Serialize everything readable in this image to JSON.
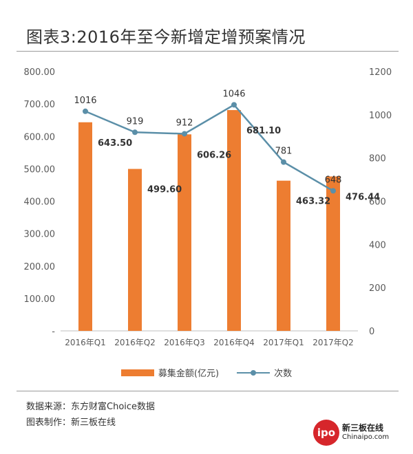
{
  "title": "图表3:2016年至今新增定增预案情况",
  "legend": {
    "bar_label": "募集金额(亿元)",
    "line_label": "次数"
  },
  "notes": {
    "source": "数据来源：东方财富Choice数据",
    "maker": "图表制作：新三板在线"
  },
  "logo": {
    "mark": "ipo",
    "name_cn": "新三板在线",
    "name_en": "Chinaipo.com"
  },
  "colors": {
    "bar": "#ed7d31",
    "line": "#5b8fa8",
    "axis_text": "#595959",
    "label_text": "#333333"
  },
  "chart_data": {
    "type": "bar",
    "categories": [
      "2016年Q1",
      "2016年Q2",
      "2016年Q3",
      "2016年Q4",
      "2017年Q1",
      "2017年Q2"
    ],
    "series": [
      {
        "name": "募集金额(亿元)",
        "type": "bar",
        "axis": "left",
        "values": [
          643.5,
          499.6,
          606.26,
          681.1,
          463.32,
          476.44
        ],
        "labels": [
          "643.50",
          "499.60",
          "606.26",
          "681.10",
          "463.32",
          "476.44"
        ]
      },
      {
        "name": "次数",
        "type": "line",
        "axis": "right",
        "values": [
          1016,
          919,
          912,
          1046,
          781,
          648
        ],
        "labels": [
          "1016",
          "919",
          "912",
          "1046",
          "781",
          "648"
        ]
      }
    ],
    "y_left": {
      "min": 0,
      "max": 800,
      "ticks": [
        0,
        100,
        200,
        300,
        400,
        500,
        600,
        700,
        800
      ],
      "tick_labels": [
        "-",
        "100.00",
        "200.00",
        "300.00",
        "400.00",
        "500.00",
        "600.00",
        "700.00",
        "800.00"
      ]
    },
    "y_right": {
      "min": 0,
      "max": 1200,
      "ticks": [
        0,
        200,
        400,
        600,
        800,
        1000,
        1200
      ],
      "tick_labels": [
        "0",
        "200",
        "400",
        "600",
        "800",
        "1000",
        "1200"
      ]
    },
    "grid": false,
    "legend_position": "bottom"
  }
}
